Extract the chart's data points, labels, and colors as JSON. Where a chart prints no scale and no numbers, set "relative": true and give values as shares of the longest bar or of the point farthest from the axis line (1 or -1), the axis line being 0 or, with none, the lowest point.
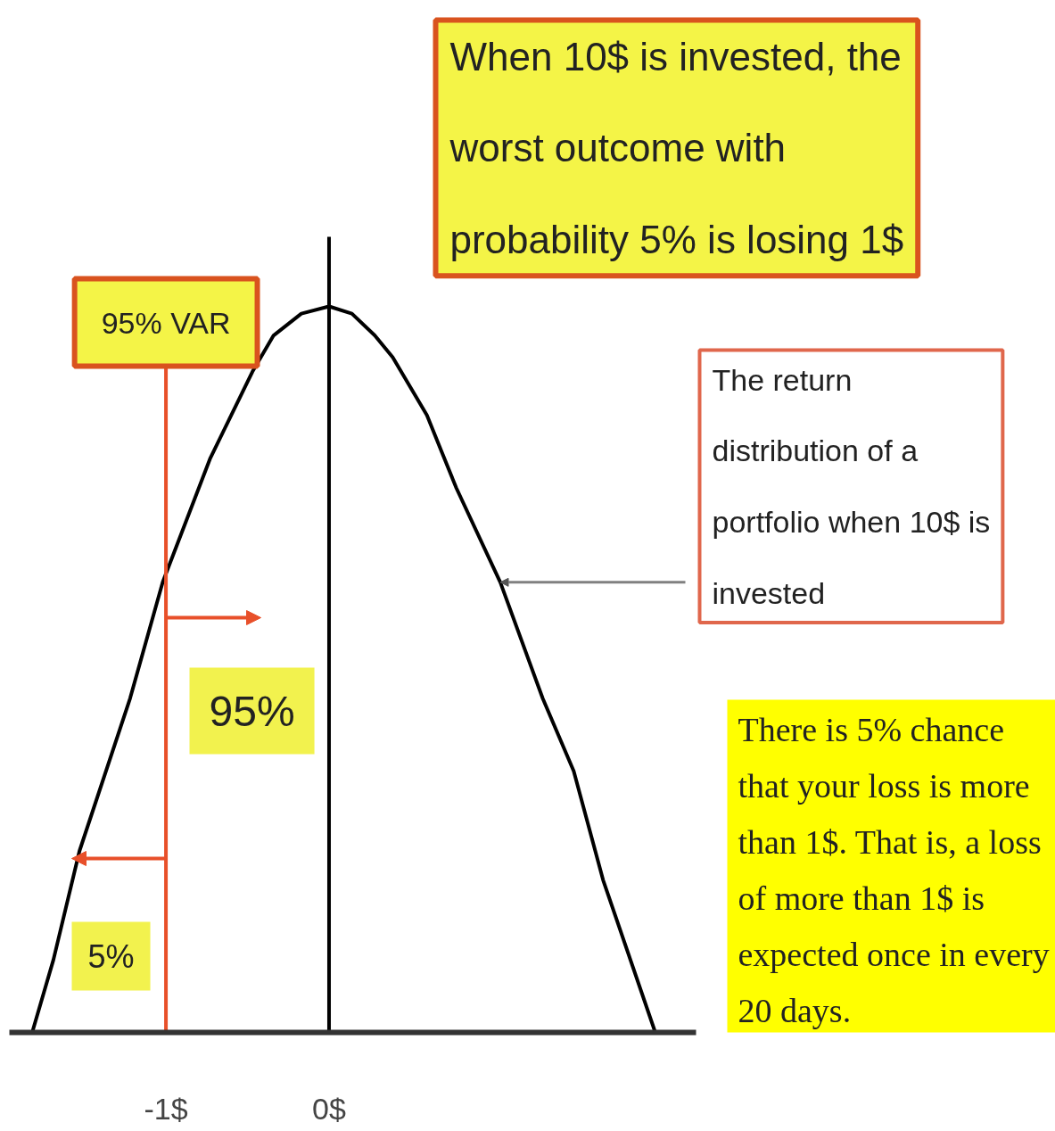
{
  "chart_data": {
    "type": "line",
    "relative": true,
    "x": [
      -1.82,
      -1.69,
      -1.53,
      -1.22,
      -1.02,
      -0.73,
      -0.6,
      -0.47,
      -0.34,
      -0.17,
      0,
      0.14,
      0.28,
      0.39,
      0.6,
      0.78,
      1.05,
      1.31,
      1.5,
      1.68,
      2.0
    ],
    "series": [
      {
        "color": "#000000",
        "values": [
          0,
          0.1,
          0.25,
          0.46,
          0.62,
          0.79,
          0.85,
          0.91,
          0.96,
          0.99,
          1,
          0.99,
          0.96,
          0.93,
          0.85,
          0.75,
          0.62,
          0.46,
          0.36,
          0.21,
          0
        ]
      }
    ],
    "xlim": [
      -1.96,
      2.25
    ],
    "xticks": [
      {
        "value": -1,
        "label": "-1$"
      },
      {
        "value": 0,
        "label": "0$"
      }
    ],
    "ref_lines": [
      {
        "axis": "x",
        "value": -1,
        "label": "95% VAR",
        "color": "#e8502a"
      },
      {
        "axis": "x",
        "value": 0,
        "color": "#000000"
      }
    ],
    "annotations": [
      "When 10$ is invested, the worst outcome with probability 5% is losing 1$",
      "The return distribution of a portfolio when 10$ is invested",
      "95%",
      "5%",
      "There is 5% chance that your loss is more than 1$. That is, a loss of more than 1$ is expected once in every 20 days."
    ]
  }
}
